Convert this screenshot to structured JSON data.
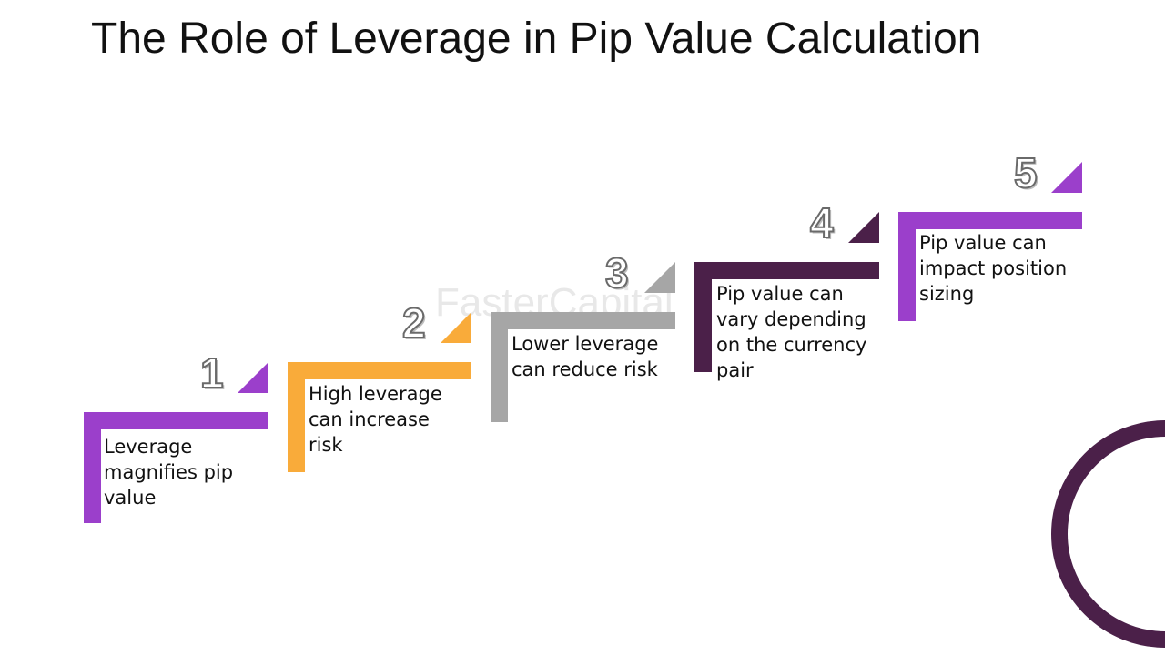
{
  "title": "The Role of Leverage in Pip Value Calculation",
  "watermark": "FasterCapital",
  "steps": [
    {
      "number": "1",
      "label": "Leverage magnifies pip value",
      "color": "#9b3fcb"
    },
    {
      "number": "2",
      "label": "High leverage can increase risk",
      "color": "#f9ab3a"
    },
    {
      "number": "3",
      "label": "Lower leverage can reduce risk",
      "color": "#a6a6a6"
    },
    {
      "number": "4",
      "label": "Pip value can vary depending on the currency pair",
      "color": "#4b2049"
    },
    {
      "number": "5",
      "label": "Pip value can impact position sizing",
      "color": "#9b3fcb"
    }
  ],
  "decoration": {
    "ring_color": "#4b2049"
  }
}
